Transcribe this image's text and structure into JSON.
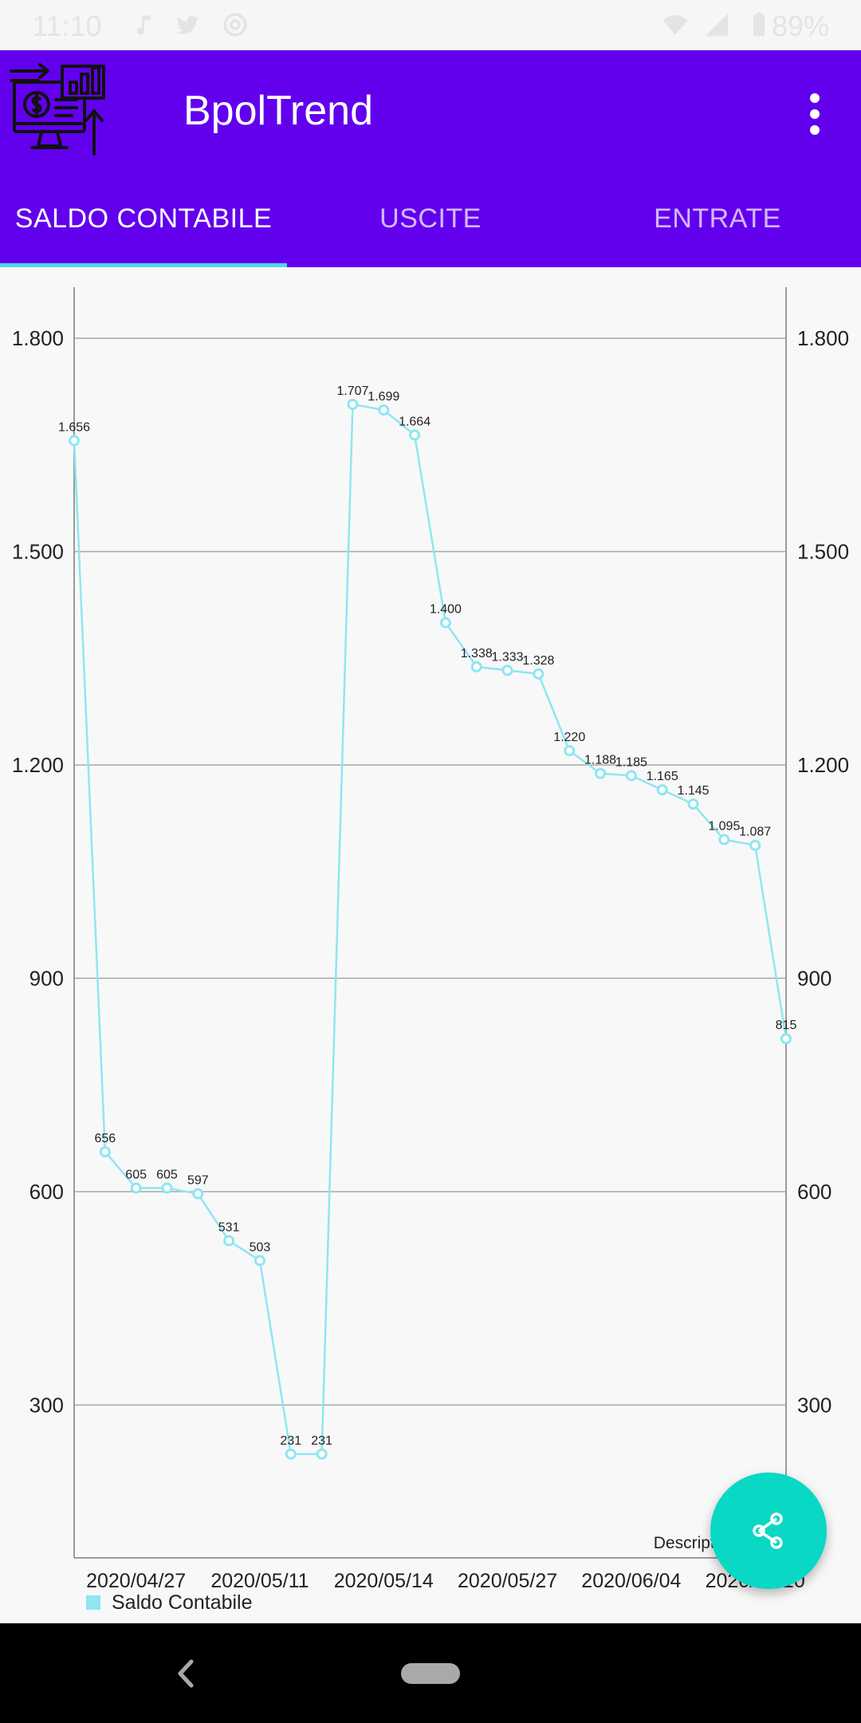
{
  "status_bar": {
    "time": "11:10",
    "battery": "89%",
    "icons": [
      "music-icon",
      "twitter-icon",
      "at-icon",
      "wifi-icon",
      "signal-icon",
      "battery-icon"
    ]
  },
  "app": {
    "title": "BpolTrend",
    "logo_icon": "finance-monitor-icon",
    "menu_icon": "more-vert-icon"
  },
  "tabs": [
    {
      "label": "SALDO CONTABILE",
      "active": true
    },
    {
      "label": "USCITE",
      "active": false
    },
    {
      "label": "ENTRATE",
      "active": false
    }
  ],
  "colors": {
    "app_bar": "#6200ee",
    "tab_indicator": "#4fd8e8",
    "series_line": "#8ee6f2",
    "fab": "#09d8c4"
  },
  "chart_data": {
    "type": "line",
    "xlabel": "",
    "ylabel": "",
    "ylim": [
      85,
      1855
    ],
    "yticks": [
      300,
      600,
      900,
      1200,
      1500,
      1800
    ],
    "ytick_labels": [
      "300",
      "600",
      "900",
      "1.200",
      "1.500",
      "1.800"
    ],
    "x_tick_labels": [
      {
        "label": "2020/04/27",
        "index": 2
      },
      {
        "label": "2020/05/11",
        "index": 6
      },
      {
        "label": "2020/05/14",
        "index": 10
      },
      {
        "label": "2020/05/27",
        "index": 14
      },
      {
        "label": "2020/06/04",
        "index": 18
      },
      {
        "label": "2020/06/10",
        "index": 22
      }
    ],
    "description_label": "Description Label",
    "grid": true,
    "legend_position": "bottom-left",
    "series": [
      {
        "name": "Saldo Contabile",
        "values": [
          1656,
          656,
          605,
          605,
          597,
          531,
          503,
          231,
          231,
          1707,
          1699,
          1664,
          1400,
          1338,
          1333,
          1328,
          1220,
          1188,
          1185,
          1165,
          1145,
          1095,
          1087,
          815
        ],
        "value_labels": [
          "1.656",
          "656",
          "605",
          "605",
          "597",
          "531",
          "503",
          "231",
          "231",
          "1.707",
          "1.699",
          "1.664",
          "1.400",
          "1.338",
          "1.333",
          "1.328",
          "1.220",
          "1.188",
          "1.185",
          "1.165",
          "1.145",
          "1.095",
          "1.087",
          "815"
        ]
      }
    ]
  },
  "fab": {
    "icon": "share-icon"
  }
}
